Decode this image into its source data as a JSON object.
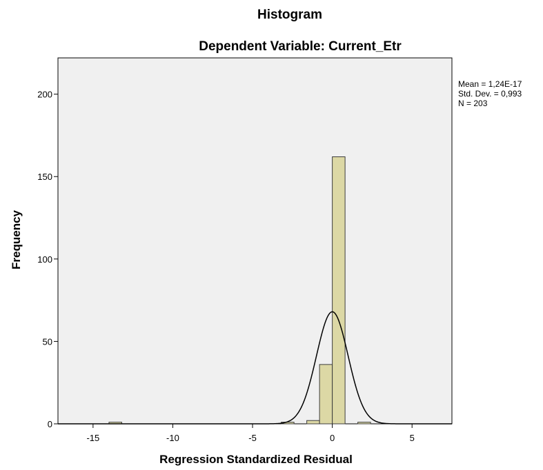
{
  "chart_data": {
    "type": "bar",
    "title": "Histogram",
    "subtitle": "Dependent Variable: Current_Etr",
    "xlabel": "Regression Standardized Residual",
    "ylabel": "Frequency",
    "xlim": [
      -17.2,
      7.5
    ],
    "ylim": [
      0,
      222
    ],
    "xticks": [
      -15,
      -10,
      -5,
      0,
      5
    ],
    "yticks": [
      0,
      50,
      100,
      150,
      200
    ],
    "grid": false,
    "bin_width": 0.8,
    "bins": [
      {
        "x0": -14.0,
        "x1": -13.2,
        "count": 1
      },
      {
        "x0": -3.2,
        "x1": -2.4,
        "count": 1
      },
      {
        "x0": -1.6,
        "x1": -0.8,
        "count": 2
      },
      {
        "x0": -0.8,
        "x1": 0.0,
        "count": 36
      },
      {
        "x0": 0.0,
        "x1": 0.8,
        "count": 162
      },
      {
        "x0": 1.6,
        "x1": 2.4,
        "count": 1
      }
    ],
    "normal_curve": {
      "mean": 0.0,
      "sd": 0.993,
      "peak": 68
    },
    "stats": {
      "mean": "Mean = 1,24E-17",
      "std_dev": "Std. Dev. = 0,993",
      "n": "N = 203"
    },
    "colors": {
      "plot_background": "#f0f0f0",
      "bar_fill": "#dcd8a5",
      "bar_stroke": "#3c3c3c",
      "curve": "#000000",
      "axis": "#000000"
    }
  }
}
